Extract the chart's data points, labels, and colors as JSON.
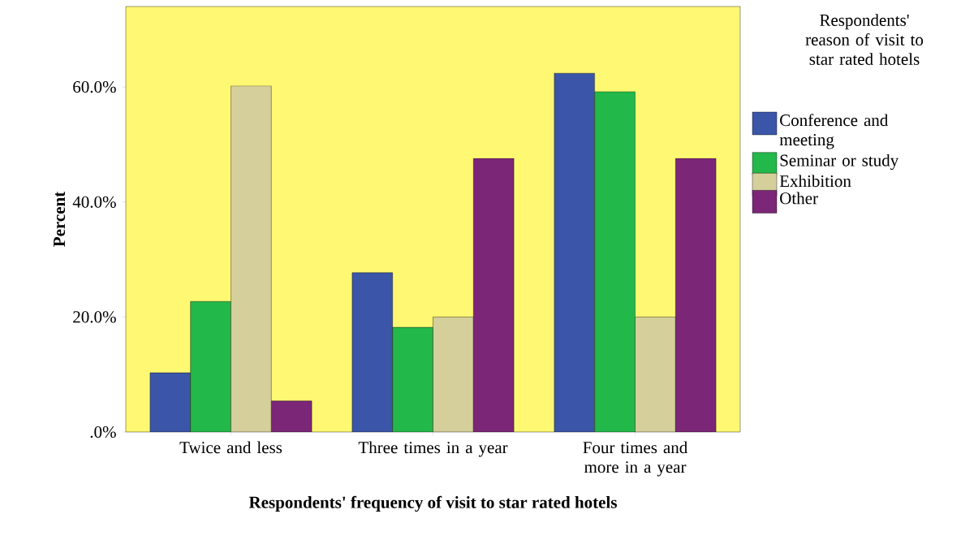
{
  "chart_data": {
    "type": "bar",
    "xlabel": "Respondents' frequency of visit to star rated hotels",
    "ylabel": "Percent",
    "legend_title": "Respondents' reason of visit to star rated hotels",
    "categories": [
      "Twice and less",
      "Three times in a year",
      "Four times and more in a year"
    ],
    "series": [
      {
        "name": "Conference and meeting",
        "color": "#3b55a8",
        "values": [
          10.3,
          27.7,
          62.4
        ]
      },
      {
        "name": "Seminar or study",
        "color": "#22b84a",
        "values": [
          22.7,
          18.2,
          59.2
        ]
      },
      {
        "name": "Exhibition",
        "color": "#d5cf9b",
        "values": [
          60.2,
          20.0,
          20.0
        ]
      },
      {
        "name": "Other",
        "color": "#7b2677",
        "values": [
          5.4,
          47.6,
          47.6
        ]
      }
    ],
    "ylim": [
      0,
      74
    ],
    "yticks": [
      {
        "value": 0,
        "label": ".0%"
      },
      {
        "value": 20,
        "label": "20.0%"
      },
      {
        "value": 40,
        "label": "40.0%"
      },
      {
        "value": 60,
        "label": "60.0%"
      }
    ],
    "legend": "right",
    "grid": false
  }
}
